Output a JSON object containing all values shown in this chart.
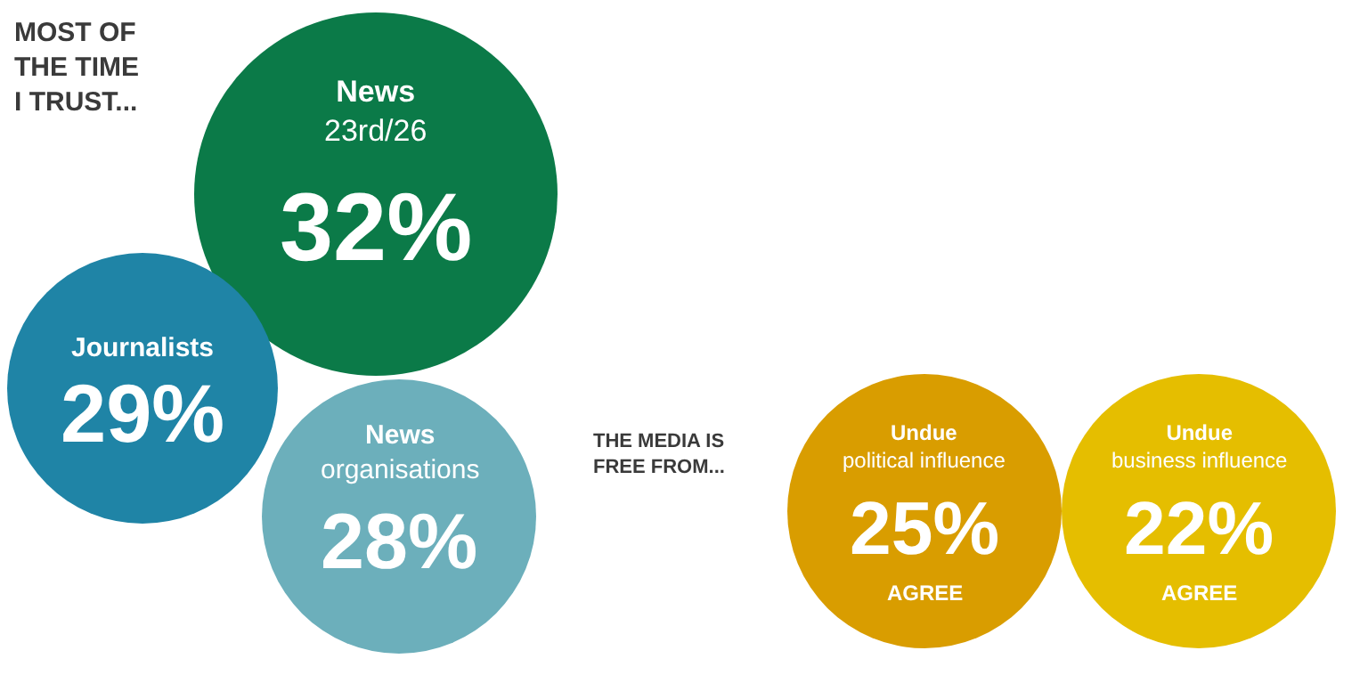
{
  "chart_data": [
    {
      "type": "other",
      "title": "MOST OF\nTHE TIME\nI TRUST...",
      "categories": [
        "News\n23rd/26",
        "Journalists",
        "News\norganisations"
      ],
      "values": [
        32,
        29,
        28
      ],
      "value_labels": [
        "32%",
        "29%",
        "28%"
      ],
      "colors": [
        "#0b7a48",
        "#1f84a6",
        "#6cafbb"
      ]
    },
    {
      "type": "other",
      "title": "THE MEDIA IS\nFREE FROM...",
      "categories": [
        "Undue\npolitical influence",
        "Undue\nbusiness influence"
      ],
      "values": [
        25,
        22
      ],
      "value_labels": [
        "25%",
        "22%"
      ],
      "colors": [
        "#d99d00",
        "#e5be00"
      ],
      "annotations": [
        "AGREE",
        "AGREE"
      ]
    }
  ]
}
